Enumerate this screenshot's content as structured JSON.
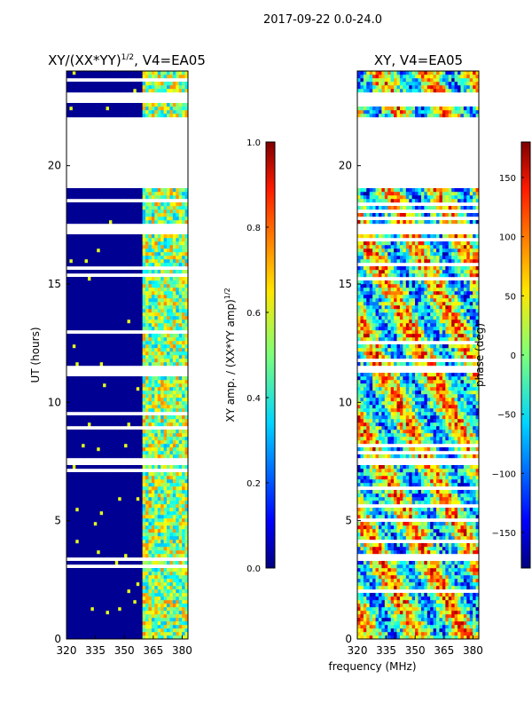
{
  "figure_title": "2017-09-22 0.0-24.0",
  "colors": {
    "jet": [
      "#00007f",
      "#0000ff",
      "#0080ff",
      "#00ffff",
      "#80ff80",
      "#ffff00",
      "#ff8000",
      "#ff0000",
      "#7f0000"
    ],
    "background": "#ffffff"
  },
  "chart_data": [
    {
      "type": "heatmap",
      "panel": "left",
      "title": "XY/(XX*YY)^{1/2}, V4=EA05",
      "title_main": "XY/(XX*YY)",
      "title_exp": "1/2",
      "title_tail": ", V4=EA05",
      "xlabel": "",
      "ylabel": "UT (hours)",
      "xlim": [
        320,
        383
      ],
      "ylim": [
        0,
        24
      ],
      "xticks": [
        320,
        335,
        350,
        365,
        380
      ],
      "yticks": [
        0,
        5,
        10,
        15,
        20
      ],
      "colorbar": {
        "label": "XY amp. / (XX*YY amp)^{1/2}",
        "label_main": "XY amp. / (XX*YY amp)",
        "label_exp": "1/2",
        "range": [
          0.0,
          1.0
        ],
        "ticks": [
          "0.0",
          "0.2",
          "0.4",
          "0.6",
          "0.8",
          "1.0"
        ],
        "tick_values": [
          0.0,
          0.2,
          0.4,
          0.6,
          0.8,
          1.0
        ]
      },
      "active_band_mhz": [
        359,
        383
      ],
      "gaps_hours": [
        [
          19.1,
          21.7
        ],
        [
          21.8,
          22.0
        ],
        [
          22.6,
          23.1
        ],
        [
          17.1,
          17.6
        ],
        [
          3.3,
          3.5
        ],
        [
          7.3,
          7.6
        ],
        [
          11.3,
          11.5
        ]
      ]
    },
    {
      "type": "heatmap",
      "panel": "right",
      "title": "XY, V4=EA05",
      "xlabel": "frequency (MHz)",
      "ylabel": "",
      "xlim": [
        320,
        383
      ],
      "ylim": [
        0,
        24
      ],
      "xticks": [
        320,
        335,
        350,
        365,
        380
      ],
      "yticks": [
        0,
        5,
        10,
        15,
        20
      ],
      "colorbar": {
        "label": "phase (deg)",
        "range": [
          -180,
          180
        ],
        "ticks": [
          "−150",
          "−100",
          "−50",
          "0",
          "50",
          "100",
          "150"
        ],
        "tick_values": [
          -150,
          -100,
          -50,
          0,
          50,
          100,
          150
        ]
      },
      "gaps_hours": [
        [
          19.1,
          21.7
        ],
        [
          21.8,
          22.0
        ],
        [
          22.6,
          23.1
        ],
        [
          17.1,
          17.6
        ],
        [
          3.3,
          3.5
        ],
        [
          7.3,
          7.6
        ],
        [
          11.3,
          11.5
        ]
      ]
    }
  ]
}
